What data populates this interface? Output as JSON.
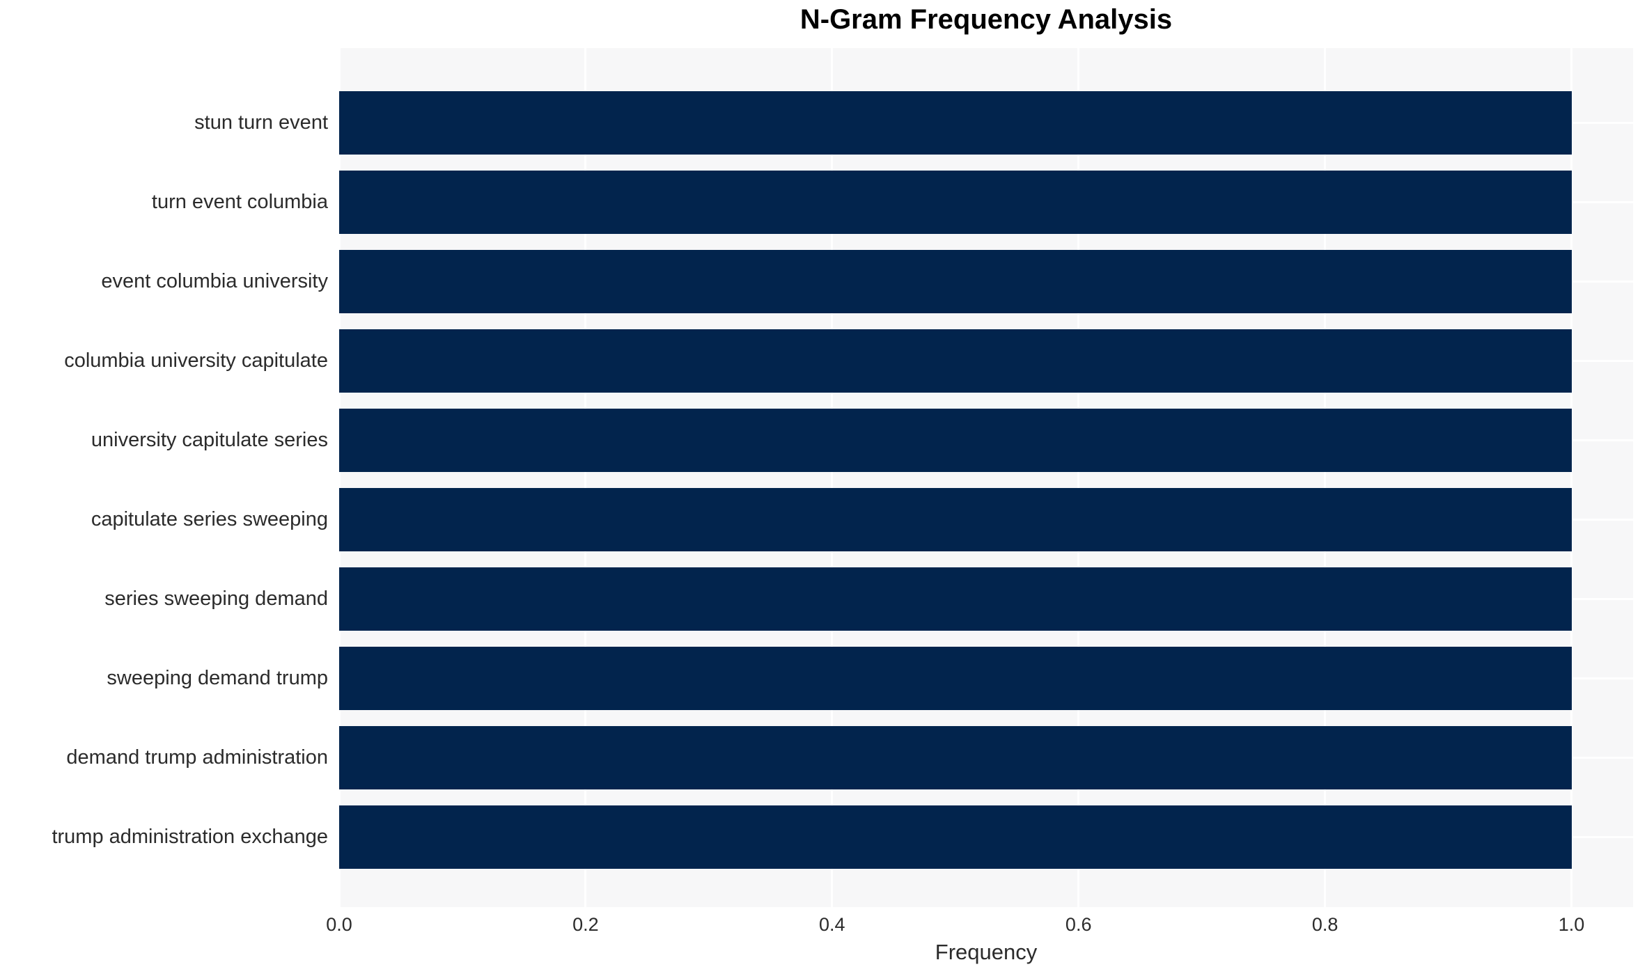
{
  "chart_data": {
    "type": "bar",
    "orientation": "horizontal",
    "title": "N-Gram Frequency Analysis",
    "xlabel": "Frequency",
    "ylabel": "",
    "categories": [
      "stun turn event",
      "turn event columbia",
      "event columbia university",
      "columbia university capitulate",
      "university capitulate series",
      "capitulate series sweeping",
      "series sweeping demand",
      "sweeping demand trump",
      "demand trump administration",
      "trump administration exchange"
    ],
    "values": [
      1.0,
      1.0,
      1.0,
      1.0,
      1.0,
      1.0,
      1.0,
      1.0,
      1.0,
      1.0
    ],
    "xticks": [
      "0.0",
      "0.2",
      "0.4",
      "0.6",
      "0.8",
      "1.0"
    ],
    "xtick_values": [
      0.0,
      0.2,
      0.4,
      0.6,
      0.8,
      1.0
    ],
    "xlim": [
      0.0,
      1.05
    ],
    "grid": "on",
    "legend": "none",
    "colors": {
      "bar": "#02244d",
      "plot_background": "#f7f7f8",
      "gridline": "#ffffff",
      "tick_text": "#2b2b2b",
      "title_text": "#000000"
    }
  }
}
